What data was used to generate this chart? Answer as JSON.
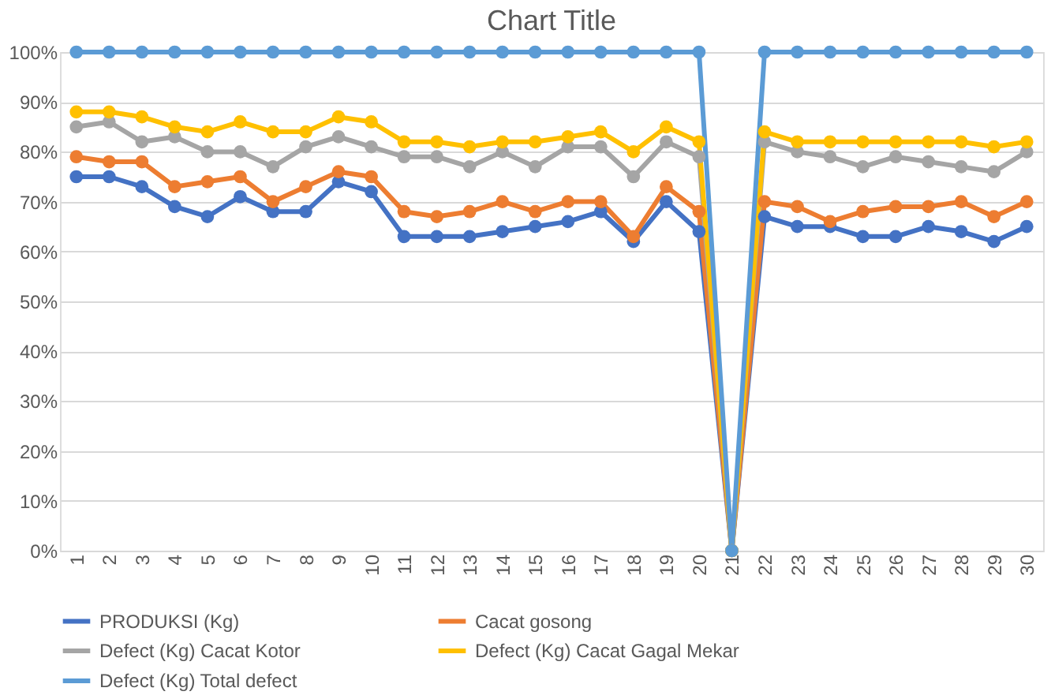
{
  "chart_data": {
    "type": "line",
    "title": "Chart Title",
    "categories": [
      "1",
      "2",
      "3",
      "4",
      "5",
      "6",
      "7",
      "8",
      "9",
      "10",
      "11",
      "12",
      "13",
      "14",
      "15",
      "16",
      "17",
      "18",
      "19",
      "20",
      "21",
      "22",
      "23",
      "24",
      "25",
      "26",
      "27",
      "28",
      "29",
      "30"
    ],
    "series": [
      {
        "name": "PRODUKSI (Kg)",
        "color": "#4472c4",
        "values": [
          75,
          75,
          73,
          69,
          67,
          71,
          68,
          68,
          74,
          72,
          63,
          63,
          63,
          64,
          65,
          66,
          68,
          62,
          70,
          64,
          0,
          67,
          65,
          65,
          63,
          63,
          65,
          64,
          62,
          65
        ]
      },
      {
        "name": "Cacat gosong",
        "color": "#ed7d31",
        "values": [
          79,
          78,
          78,
          73,
          74,
          75,
          70,
          73,
          76,
          75,
          68,
          67,
          68,
          70,
          68,
          70,
          70,
          63,
          73,
          68,
          0,
          70,
          69,
          66,
          68,
          69,
          69,
          70,
          67,
          70
        ]
      },
      {
        "name": "Defect  (Kg)      Cacat Kotor",
        "color": "#a5a5a5",
        "values": [
          85,
          86,
          82,
          83,
          80,
          80,
          77,
          81,
          83,
          81,
          79,
          79,
          77,
          80,
          77,
          81,
          81,
          75,
          82,
          79,
          0,
          82,
          80,
          79,
          77,
          79,
          78,
          77,
          76,
          80
        ]
      },
      {
        "name": "Defect  (Kg)      Cacat Gagal Mekar",
        "color": "#ffc000",
        "values": [
          88,
          88,
          87,
          85,
          84,
          86,
          84,
          84,
          87,
          86,
          82,
          82,
          81,
          82,
          82,
          83,
          84,
          80,
          85,
          82,
          0,
          84,
          82,
          82,
          82,
          82,
          82,
          82,
          81,
          82
        ]
      },
      {
        "name": "Defect  (Kg)      Total defect",
        "color": "#5b9bd5",
        "values": [
          100,
          100,
          100,
          100,
          100,
          100,
          100,
          100,
          100,
          100,
          100,
          100,
          100,
          100,
          100,
          100,
          100,
          100,
          100,
          100,
          0,
          100,
          100,
          100,
          100,
          100,
          100,
          100,
          100,
          100
        ]
      }
    ],
    "ylim": [
      0,
      100
    ],
    "yticks": [
      {
        "value": 0,
        "label": "0%"
      },
      {
        "value": 10,
        "label": "10%"
      },
      {
        "value": 20,
        "label": "20%"
      },
      {
        "value": 30,
        "label": "30%"
      },
      {
        "value": 40,
        "label": "40%"
      },
      {
        "value": 50,
        "label": "50%"
      },
      {
        "value": 60,
        "label": "60%"
      },
      {
        "value": 70,
        "label": "70%"
      },
      {
        "value": 80,
        "label": "80%"
      },
      {
        "value": 90,
        "label": "90%"
      },
      {
        "value": 100,
        "label": "100%"
      }
    ],
    "grid": "y",
    "legend": "bottom",
    "marker": "circle",
    "line_style": "solid"
  }
}
